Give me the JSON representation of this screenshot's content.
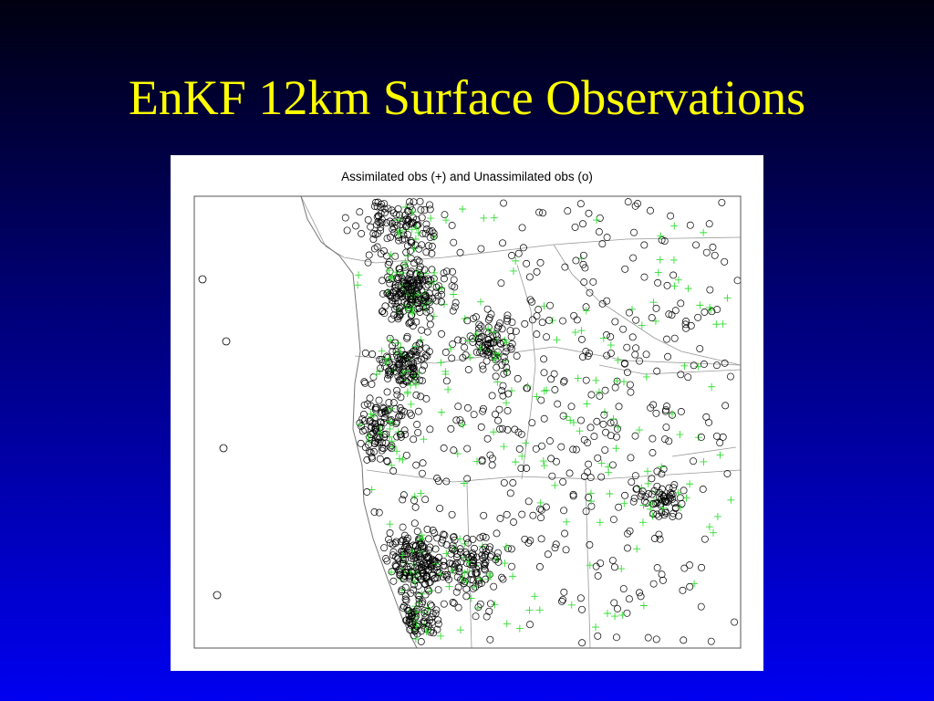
{
  "slide": {
    "title": "EnKF 12km Surface Observations"
  },
  "figure": {
    "title": "Assimilated obs (+) and Unassimilated obs (o)"
  }
}
